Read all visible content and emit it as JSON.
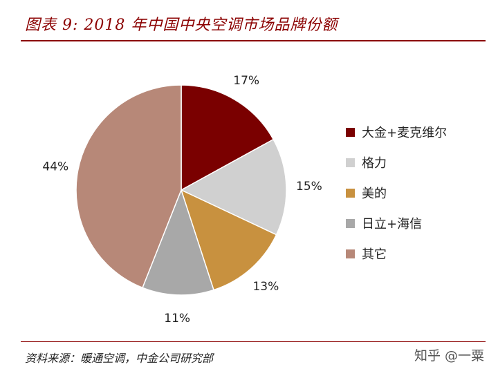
{
  "header": {
    "title": "图表 9: 2018 年中国中央空调市场品牌份额"
  },
  "footer": {
    "source": "资料来源：暖通空调，中金公司研究部",
    "credit": "知乎 @一粟"
  },
  "chart_data": {
    "type": "pie",
    "title": "图表 9: 2018 年中国中央空调市场品牌份额",
    "legend_position": "right",
    "slices": [
      {
        "name": "大金+麦克维尔",
        "value": 17,
        "label": "17%",
        "color": "#7a0000"
      },
      {
        "name": "格力",
        "value": 15,
        "label": "15%",
        "color": "#d0d0d0"
      },
      {
        "name": "美的",
        "value": 13,
        "label": "13%",
        "color": "#c8913f"
      },
      {
        "name": "日立+海信",
        "value": 11,
        "label": "11%",
        "color": "#a8a8a8"
      },
      {
        "name": "其它",
        "value": 44,
        "label": "44%",
        "color": "#b78878"
      }
    ]
  }
}
